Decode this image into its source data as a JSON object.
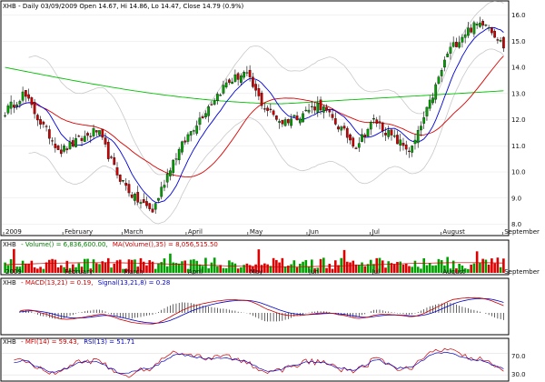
{
  "chart_data": [
    {
      "type": "candlestick",
      "symbol": "XHB",
      "header": "XHB - Daily 03/09/2009 Open 14.67, Hi 14.86, Lo 14.47, Close 14.79 (0.9%)",
      "months": [
        "2009",
        "February",
        "March",
        "April",
        "May",
        "Jun",
        "Jul",
        "August",
        "September"
      ],
      "y_ticks": [
        "16.0",
        "15.0",
        "14.0",
        "13.0",
        "12.0",
        "11.0",
        "10.0",
        "9.0",
        "8.0"
      ],
      "ylim": [
        7.6,
        16.3
      ],
      "anchors_close": [
        12.3,
        13.0,
        11.8,
        10.8,
        11.2,
        11.6,
        10.0,
        9.0,
        8.5,
        10.3,
        11.5,
        12.5,
        13.4,
        13.8,
        12.5,
        11.9,
        12.2,
        12.6,
        11.8,
        11.0,
        12.0,
        11.3,
        10.8,
        12.6,
        14.6,
        15.4,
        15.8,
        14.8
      ]
    },
    {
      "type": "bar",
      "header_symbol": "XHB",
      "header_volume": "- Volume() = 6,836,600.00,",
      "header_ma": "MA(Volume(),35) = 8,056,515.50",
      "months": [
        "2009",
        "February",
        "March",
        "April",
        "May",
        "Jun",
        "Jul",
        "August",
        "September"
      ]
    },
    {
      "type": "line",
      "header_symbol": "XHB",
      "header_macd": "- MACD(13,21) = 0.19,",
      "header_signal": "Signal(13,21,8) = 0.28"
    },
    {
      "type": "line",
      "header_symbol": "XHB",
      "header_mfi": "- MFI(14) = 59.43,",
      "header_rsi": "RSI(13) = 51.71",
      "y_ticks": [
        "70.0",
        "30.0"
      ]
    }
  ]
}
